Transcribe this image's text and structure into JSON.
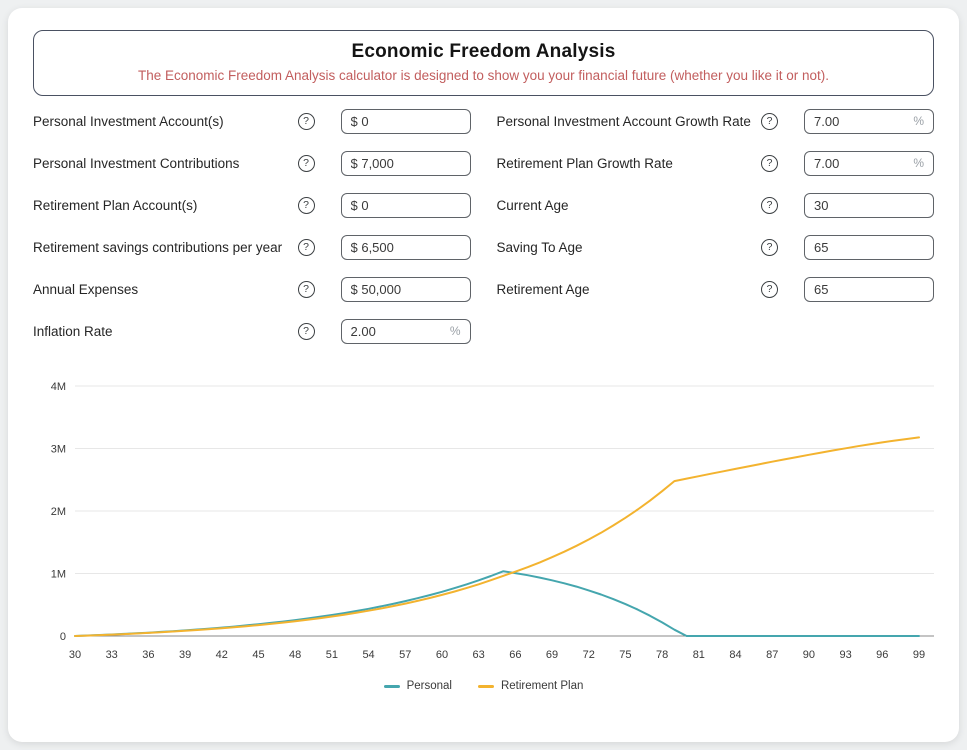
{
  "colors": {
    "header_border": "#4a5162",
    "subtitle_text": "#c25e5e",
    "personal_line": "#45a6ae",
    "retirement_line": "#f3b32f"
  },
  "header": {
    "title": "Economic Freedom Analysis",
    "subtitle": "The Economic Freedom Analysis calculator is designed to show you your financial future (whether you like it or not)."
  },
  "icons": {
    "help": "?"
  },
  "fields_left": [
    {
      "label": "Personal Investment Account(s)",
      "value": "$ 0",
      "suffix": ""
    },
    {
      "label": "Personal Investment Contributions",
      "value": "$ 7,000",
      "suffix": ""
    },
    {
      "label": "Retirement Plan Account(s)",
      "value": "$ 0",
      "suffix": ""
    },
    {
      "label": "Retirement savings contributions per year",
      "value": "$ 6,500",
      "suffix": ""
    },
    {
      "label": "Annual Expenses",
      "value": "$ 50,000",
      "suffix": ""
    },
    {
      "label": "Inflation Rate",
      "value": "2.00",
      "suffix": "%"
    }
  ],
  "fields_right": [
    {
      "label": "Personal Investment Account Growth Rate",
      "value": "7.00",
      "suffix": "%"
    },
    {
      "label": "Retirement Plan Growth Rate",
      "value": "7.00",
      "suffix": "%"
    },
    {
      "label": "Current Age",
      "value": "30",
      "suffix": ""
    },
    {
      "label": "Saving To Age",
      "value": "65",
      "suffix": ""
    },
    {
      "label": "Retirement Age",
      "value": "65",
      "suffix": ""
    }
  ],
  "chart_data": {
    "type": "line",
    "grid": true,
    "legend_position": "bottom",
    "ylim": [
      0,
      4000000
    ],
    "y_ticks": [
      {
        "label": "0",
        "value": 0
      },
      {
        "label": "1M",
        "value": 1000000
      },
      {
        "label": "2M",
        "value": 2000000
      },
      {
        "label": "3M",
        "value": 3000000
      },
      {
        "label": "4M",
        "value": 4000000
      }
    ],
    "x_label_ticks": [
      30,
      33,
      36,
      39,
      42,
      45,
      48,
      51,
      54,
      57,
      60,
      63,
      66,
      69,
      72,
      75,
      78,
      81,
      84,
      87,
      90,
      93,
      96,
      99
    ],
    "x": [
      30,
      31,
      32,
      33,
      34,
      35,
      36,
      37,
      38,
      39,
      40,
      41,
      42,
      43,
      44,
      45,
      46,
      47,
      48,
      49,
      50,
      51,
      52,
      53,
      54,
      55,
      56,
      57,
      58,
      59,
      60,
      61,
      62,
      63,
      64,
      65,
      66,
      67,
      68,
      69,
      70,
      71,
      72,
      73,
      74,
      75,
      76,
      77,
      78,
      79,
      80,
      81,
      82,
      83,
      84,
      85,
      86,
      87,
      88,
      89,
      90,
      91,
      92,
      93,
      94,
      95,
      96,
      97,
      98,
      99
    ],
    "series": [
      {
        "name": "Personal",
        "color": "#45a6ae",
        "values": [
          0,
          7490,
          15504,
          24079,
          33255,
          43073,
          53578,
          64818,
          76845,
          89714,
          103484,
          118218,
          133983,
          150852,
          168902,
          188215,
          208880,
          230992,
          254651,
          279967,
          307055,
          336039,
          367051,
          400235,
          435741,
          473733,
          514384,
          557881,
          604423,
          654223,
          707508,
          764524,
          825531,
          890808,
          960655,
          1035391,
          1005868,
          972239,
          934175,
          891344,
          843330,
          789747,
          730161,
          664106,
          591084,
          510561,
          421963,
          324676,
          218043,
          101358,
          0,
          0,
          0,
          0,
          0,
          0,
          0,
          0,
          0,
          0,
          0,
          0,
          0,
          0,
          0,
          0,
          0,
          0,
          0,
          0
        ]
      },
      {
        "name": "Retirement Plan",
        "color": "#f3b32f",
        "values": [
          0,
          6955,
          14397,
          22360,
          30880,
          39997,
          49752,
          60190,
          71358,
          83308,
          96095,
          109777,
          124416,
          140080,
          156841,
          174775,
          193964,
          214497,
          236466,
          259974,
          285127,
          312041,
          340839,
          371653,
          404624,
          439903,
          477651,
          518042,
          561260,
          607503,
          656983,
          709927,
          766577,
          827192,
          892051,
          961450,
          1028752,
          1100764,
          1177818,
          1260265,
          1348484,
          1442878,
          1543879,
          1651951,
          1767587,
          1891318,
          2023710,
          2165370,
          2316946,
          2479132,
          2518084,
          2557071,
          2596042,
          2634940,
          2673705,
          2712269,
          2750561,
          2788502,
          2826007,
          2862983,
          2899331,
          2934942,
          2969699,
          3003475,
          3036133,
          3067525,
          3097493,
          3125863,
          3152449,
          3177052
        ]
      }
    ]
  }
}
